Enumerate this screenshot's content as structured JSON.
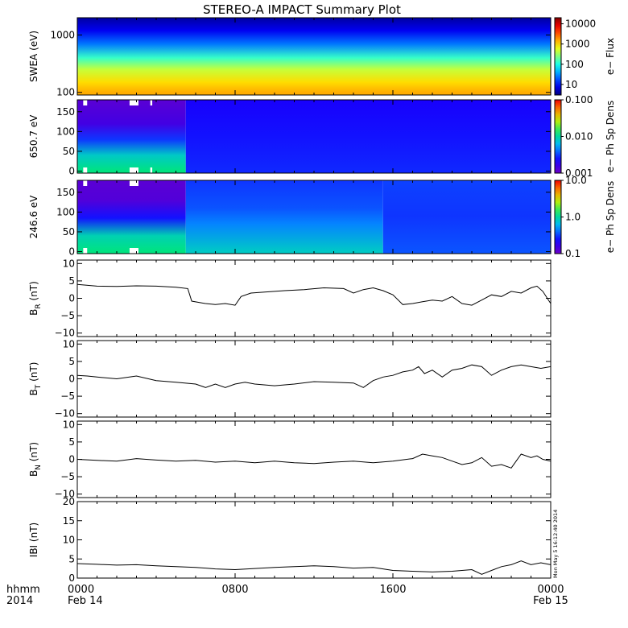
{
  "chart_data": {
    "title": "STEREO-A IMPACT Summary Plot",
    "x_axis": {
      "tick_labels": [
        "0000",
        "0800",
        "1600",
        "0000"
      ],
      "tick_hours": [
        0,
        8,
        16,
        24
      ],
      "date_labels": [
        "Feb 14",
        "Feb 15"
      ],
      "row_label_1": "hhmm",
      "row_label_2": "2014",
      "range_hours": [
        0,
        24
      ]
    },
    "stamp": "Mon May 5 16:12:40 2014",
    "panels": [
      {
        "type": "heatmap",
        "ylabel": "SWEA (eV)",
        "yscale": "log",
        "ylim": [
          90,
          2000
        ],
        "yticks": [
          "1000",
          "100"
        ],
        "ytick_values": [
          1000,
          100
        ],
        "colorbar": {
          "label": "e− Flux",
          "scale": "log",
          "ticks": [
            "10000",
            "1000",
            "100",
            "10"
          ],
          "tick_values": [
            10000,
            1000,
            100,
            10
          ],
          "range": [
            3,
            20000
          ]
        },
        "profile": [
          {
            "e": 100,
            "flux": 1500
          },
          {
            "e": 150,
            "flux": 1000
          },
          {
            "e": 250,
            "flux": 450
          },
          {
            "e": 400,
            "flux": 130
          },
          {
            "e": 700,
            "flux": 25
          },
          {
            "e": 1200,
            "flux": 8
          },
          {
            "e": 2000,
            "flux": 4
          }
        ]
      },
      {
        "type": "heatmap",
        "ylabel": "650.7 eV",
        "yscale": "linear",
        "ylim": [
          -5,
          180
        ],
        "yticks": [
          "150",
          "100",
          "50",
          "0"
        ],
        "ytick_values": [
          150,
          100,
          50,
          0
        ],
        "colorbar": {
          "label": "e− Ph Sp Dens",
          "scale": "log",
          "ticks": [
            "0.100",
            "0.010",
            "0.001"
          ],
          "tick_values": [
            0.1,
            0.01,
            0.001
          ],
          "range": [
            0.001,
            0.1
          ]
        },
        "gap_hours": [
          [
            0.3,
            0.5
          ],
          [
            2.65,
            3.1
          ],
          [
            3.7,
            3.8
          ]
        ],
        "time_segments": [
          {
            "from": 0,
            "to": 5.5,
            "pitch_angle_levels": [
              {
                "pa": 0,
                "value": 0.012
              },
              {
                "pa": 40,
                "value": 0.008
              },
              {
                "pa": 80,
                "value": 0.003
              },
              {
                "pa": 120,
                "value": 0.0015
              },
              {
                "pa": 180,
                "value": 0.0012
              }
            ]
          },
          {
            "from": 5.5,
            "to": 24,
            "pitch_angle_levels": [
              {
                "pa": 0,
                "value": 0.0028
              },
              {
                "pa": 90,
                "value": 0.0025
              },
              {
                "pa": 180,
                "value": 0.0022
              }
            ]
          }
        ]
      },
      {
        "type": "heatmap",
        "ylabel": "246.6 eV",
        "yscale": "linear",
        "ylim": [
          -5,
          180
        ],
        "yticks": [
          "150",
          "100",
          "50",
          "0"
        ],
        "ytick_values": [
          150,
          100,
          50,
          0
        ],
        "colorbar": {
          "label": "e− Ph Sp Dens",
          "scale": "log",
          "ticks": [
            "10.0",
            "1.0",
            "0.1"
          ],
          "tick_values": [
            10,
            1,
            0.1
          ],
          "range": [
            0.1,
            10
          ]
        },
        "gap_hours": [
          [
            0.3,
            0.5
          ],
          [
            2.65,
            3.1
          ]
        ],
        "time_segments": [
          {
            "from": 0,
            "to": 5.5,
            "pitch_angle_levels": [
              {
                "pa": 0,
                "value": 1.2
              },
              {
                "pa": 40,
                "value": 0.9
              },
              {
                "pa": 85,
                "value": 0.25
              },
              {
                "pa": 130,
                "value": 0.13
              },
              {
                "pa": 180,
                "value": 0.12
              }
            ]
          },
          {
            "from": 5.5,
            "to": 15.5,
            "pitch_angle_levels": [
              {
                "pa": 0,
                "value": 0.8
              },
              {
                "pa": 70,
                "value": 0.45
              },
              {
                "pa": 110,
                "value": 0.35
              },
              {
                "pa": 180,
                "value": 0.3
              }
            ]
          },
          {
            "from": 15.5,
            "to": 24,
            "pitch_angle_levels": [
              {
                "pa": 0,
                "value": 0.35
              },
              {
                "pa": 90,
                "value": 0.3
              },
              {
                "pa": 180,
                "value": 0.32
              }
            ]
          }
        ]
      },
      {
        "type": "line",
        "ylabel": "B_R (nT)",
        "ylabel_main": "B",
        "ylabel_sub": "R",
        "ylabel_unit": " (nT)",
        "ylim": [
          -11,
          11
        ],
        "yticks": [
          "10",
          "5",
          "0",
          "−5",
          "−10"
        ],
        "ytick_values": [
          10,
          5,
          0,
          -5,
          -10
        ],
        "x_hours": [
          0,
          1,
          2,
          3,
          4,
          5,
          5.6,
          5.8,
          6.5,
          7,
          7.5,
          8,
          8.3,
          8.8,
          9.5,
          10.5,
          11.5,
          12.5,
          13.5,
          14,
          14.5,
          15,
          15.5,
          16,
          16.5,
          17,
          17.5,
          18,
          18.5,
          19,
          19.5,
          20,
          20.5,
          21,
          21.5,
          22,
          22.5,
          23,
          23.3,
          23.6,
          24
        ],
        "y_values": [
          4.0,
          3.5,
          3.4,
          3.6,
          3.5,
          3.2,
          2.8,
          -0.8,
          -1.5,
          -1.8,
          -1.5,
          -2.0,
          0.5,
          1.5,
          1.8,
          2.2,
          2.5,
          3.0,
          2.8,
          1.5,
          2.5,
          3.0,
          2.2,
          1.0,
          -1.8,
          -1.5,
          -1.0,
          -0.5,
          -0.8,
          0.5,
          -1.5,
          -2.0,
          -0.5,
          1.0,
          0.5,
          2.0,
          1.5,
          3.0,
          3.5,
          2.0,
          -1.5
        ]
      },
      {
        "type": "line",
        "ylabel": "B_T (nT)",
        "ylabel_main": "B",
        "ylabel_sub": "T",
        "ylabel_unit": " (nT)",
        "ylim": [
          -11,
          11
        ],
        "yticks": [
          "10",
          "5",
          "0",
          "−5",
          "−10"
        ],
        "ytick_values": [
          10,
          5,
          0,
          -5,
          -10
        ],
        "x_hours": [
          0,
          0.5,
          1,
          2,
          3,
          4,
          5,
          6,
          6.5,
          7,
          7.5,
          8,
          8.5,
          9,
          10,
          11,
          12,
          13,
          14,
          14.5,
          15,
          15.5,
          16,
          16.5,
          17,
          17.3,
          17.6,
          18,
          18.5,
          19,
          19.5,
          20,
          20.5,
          21,
          21.5,
          22,
          22.5,
          23,
          23.5,
          24
        ],
        "y_values": [
          1.0,
          0.8,
          0.5,
          0.0,
          0.8,
          -0.5,
          -1.0,
          -1.5,
          -2.5,
          -1.5,
          -2.5,
          -1.5,
          -1.0,
          -1.5,
          -2.0,
          -1.5,
          -0.8,
          -1.0,
          -1.2,
          -2.5,
          -0.5,
          0.5,
          1.0,
          2.0,
          2.5,
          3.5,
          1.5,
          2.5,
          0.5,
          2.5,
          3.0,
          4.0,
          3.5,
          1.0,
          2.5,
          3.5,
          4.0,
          3.5,
          3.0,
          3.5
        ]
      },
      {
        "type": "line",
        "ylabel": "B_N (nT)",
        "ylabel_main": "B",
        "ylabel_sub": "N",
        "ylabel_unit": " (nT)",
        "ylim": [
          -11,
          11
        ],
        "yticks": [
          "10",
          "5",
          "0",
          "−5",
          "−10"
        ],
        "ytick_values": [
          10,
          5,
          0,
          -5,
          -10
        ],
        "x_hours": [
          0,
          1,
          2,
          3,
          4,
          5,
          6,
          7,
          8,
          9,
          10,
          11,
          12,
          13,
          14,
          15,
          16,
          17,
          17.5,
          18,
          18.5,
          19,
          19.5,
          20,
          20.5,
          21,
          21.5,
          22,
          22.5,
          23,
          23.3,
          23.6,
          24
        ],
        "y_values": [
          0.0,
          -0.3,
          -0.5,
          0.2,
          -0.2,
          -0.5,
          -0.3,
          -0.8,
          -0.5,
          -1.0,
          -0.5,
          -1.0,
          -1.2,
          -0.8,
          -0.5,
          -1.0,
          -0.5,
          0.2,
          1.5,
          1.0,
          0.5,
          -0.5,
          -1.5,
          -1.0,
          0.5,
          -2.0,
          -1.5,
          -2.5,
          1.5,
          0.5,
          1.0,
          0.0,
          -0.5
        ]
      },
      {
        "type": "line",
        "ylabel": "IBI (nT)",
        "ylabel_main": "IBI",
        "ylabel_sub": "",
        "ylabel_unit": " (nT)",
        "ylim": [
          0,
          20
        ],
        "yticks": [
          "20",
          "15",
          "10",
          "5",
          "0"
        ],
        "ytick_values": [
          20,
          15,
          10,
          5,
          0
        ],
        "x_hours": [
          0,
          1,
          2,
          3,
          4,
          5,
          6,
          7,
          8,
          9,
          10,
          11,
          12,
          13,
          14,
          15,
          16,
          17,
          18,
          19,
          20,
          20.5,
          21,
          21.5,
          22,
          22.5,
          23,
          23.5,
          24
        ],
        "y_values": [
          3.8,
          3.6,
          3.4,
          3.5,
          3.2,
          3.0,
          2.8,
          2.4,
          2.2,
          2.5,
          2.8,
          3.0,
          3.2,
          3.0,
          2.6,
          2.8,
          2.0,
          1.8,
          1.6,
          1.8,
          2.2,
          1.0,
          2.0,
          3.0,
          3.5,
          4.5,
          3.5,
          4.0,
          3.5
        ]
      }
    ]
  }
}
